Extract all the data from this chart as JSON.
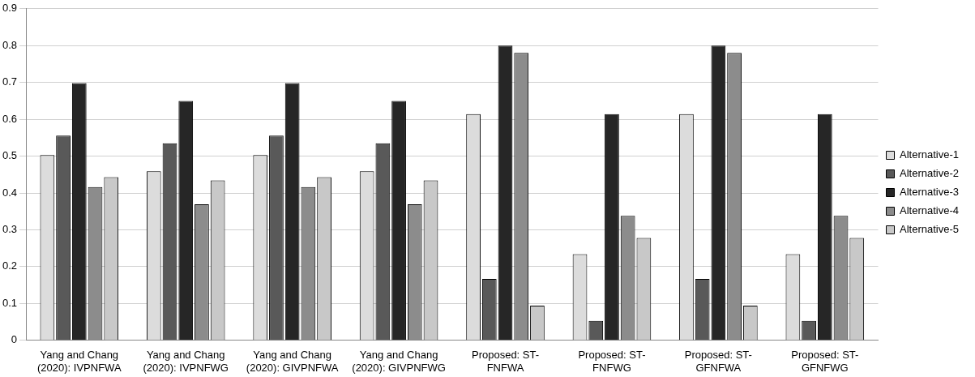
{
  "chart_data": {
    "type": "bar",
    "categories": [
      "Yang and Chang (2020): IVPNFWA",
      "Yang and Chang (2020): IVPNFWG",
      "Yang and Chang (2020): GIVPNFWA",
      "Yang and Chang (2020): GIVPNFWG",
      "Proposed: ST-FNFWA",
      "Proposed: ST-FNFWG",
      "Proposed: ST-GFNFWA",
      "Proposed: ST-GFNFWG"
    ],
    "series": [
      {
        "name": "Alternative-1",
        "color": "#dcdcdc",
        "values": [
          0.503,
          0.459,
          0.503,
          0.459,
          0.614,
          0.234,
          0.614,
          0.234
        ]
      },
      {
        "name": "Alternative-2",
        "color": "#595959",
        "values": [
          0.556,
          0.535,
          0.556,
          0.535,
          0.167,
          0.053,
          0.167,
          0.053
        ]
      },
      {
        "name": "Alternative-3",
        "color": "#262626",
        "values": [
          0.698,
          0.65,
          0.698,
          0.65,
          0.8,
          0.614,
          0.8,
          0.614
        ]
      },
      {
        "name": "Alternative-4",
        "color": "#8c8c8c",
        "values": [
          0.416,
          0.369,
          0.416,
          0.369,
          0.78,
          0.338,
          0.78,
          0.338
        ]
      },
      {
        "name": "Alternative-5",
        "color": "#c8c8c8",
        "values": [
          0.443,
          0.434,
          0.443,
          0.434,
          0.094,
          0.278,
          0.094,
          0.278
        ]
      }
    ],
    "ylim": [
      0,
      0.9
    ],
    "yticks": [
      0,
      0.1,
      0.2,
      0.3,
      0.4,
      0.5,
      0.6,
      0.7,
      0.8,
      0.9
    ],
    "grid": "y",
    "legend": "right"
  }
}
